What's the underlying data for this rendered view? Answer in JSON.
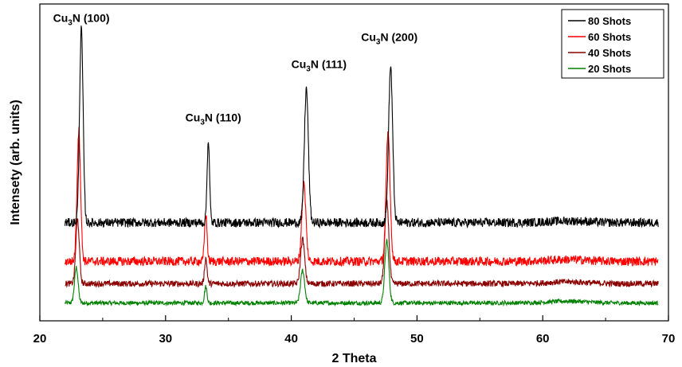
{
  "chart_data": {
    "type": "line",
    "title": "",
    "xlabel": "2 Theta",
    "ylabel": "Intensety (arb. units)",
    "xlim": [
      20,
      70
    ],
    "x_ticks": [
      20,
      30,
      40,
      50,
      60,
      70
    ],
    "x_tick_labels": [
      "20",
      "30",
      "40",
      "50",
      "60",
      "70"
    ],
    "y_ticks_shown": false,
    "grid": false,
    "legend_position": "top-right",
    "x_start": 22.0,
    "x_end": 69.2,
    "series": [
      {
        "name": "80 Shots",
        "color": "#000000",
        "baseline": 0.58,
        "noise": 0.03,
        "peak_scale": 1.0,
        "peaks": [
          {
            "x": 23.3,
            "h": 1.3,
            "w": 0.14
          },
          {
            "x": 33.4,
            "h": 0.55,
            "w": 0.1
          },
          {
            "x": 41.2,
            "h": 0.9,
            "w": 0.16
          },
          {
            "x": 47.9,
            "h": 1.05,
            "w": 0.16
          }
        ]
      },
      {
        "name": "60 Shots",
        "color": "#ff0000",
        "baseline": 0.32,
        "noise": 0.03,
        "peak_scale": 1.0,
        "peaks": [
          {
            "x": 23.1,
            "h": 0.88,
            "w": 0.14
          },
          {
            "x": 33.2,
            "h": 0.32,
            "w": 0.1
          },
          {
            "x": 41.0,
            "h": 0.52,
            "w": 0.16
          },
          {
            "x": 47.7,
            "h": 0.86,
            "w": 0.16
          }
        ]
      },
      {
        "name": "40 Shots",
        "color": "#8b0000",
        "baseline": 0.17,
        "noise": 0.02,
        "peak_scale": 1.0,
        "peaks": [
          {
            "x": 23.0,
            "h": 0.43,
            "w": 0.14
          },
          {
            "x": 33.2,
            "h": 0.17,
            "w": 0.1
          },
          {
            "x": 40.9,
            "h": 0.3,
            "w": 0.16
          },
          {
            "x": 47.6,
            "h": 0.55,
            "w": 0.16
          }
        ]
      },
      {
        "name": "20 Shots",
        "color": "#008000",
        "baseline": 0.04,
        "noise": 0.014,
        "peak_scale": 1.0,
        "peaks": [
          {
            "x": 22.9,
            "h": 0.24,
            "w": 0.14
          },
          {
            "x": 33.2,
            "h": 0.11,
            "w": 0.1
          },
          {
            "x": 40.9,
            "h": 0.22,
            "w": 0.16
          },
          {
            "x": 47.6,
            "h": 0.42,
            "w": 0.16
          }
        ]
      }
    ],
    "annotations": [
      {
        "base": "Cu",
        "sub": "3",
        "rest": "N (100)",
        "x": 23.3,
        "y": 1.93
      },
      {
        "base": "Cu",
        "sub": "3",
        "rest": "N (110)",
        "x": 33.8,
        "y": 1.26
      },
      {
        "base": "Cu",
        "sub": "3",
        "rest": "N (111)",
        "x": 42.2,
        "y": 1.62
      },
      {
        "base": "Cu",
        "sub": "3",
        "rest": "N (200)",
        "x": 47.8,
        "y": 1.8
      }
    ],
    "ylim": [
      -0.08,
      2.05
    ]
  }
}
